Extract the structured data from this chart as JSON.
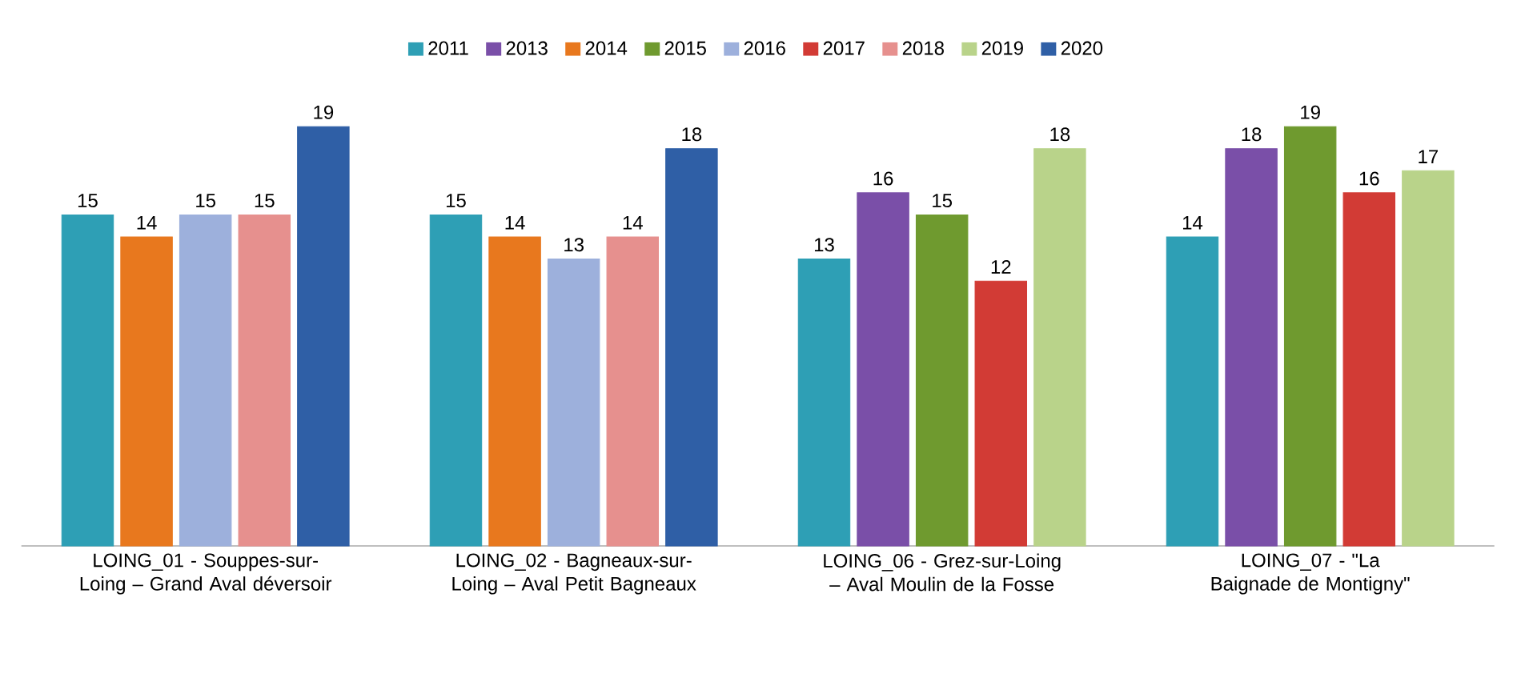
{
  "chart_data": {
    "type": "bar",
    "legend": "top",
    "data_labels": true,
    "categories": [
      "LOING_01 - Souppes-sur-Loing – Grand Aval déversoir",
      "LOING_02 - Bagneaux-sur-Loing – Aval Petit Bagneaux",
      "LOING_06 - Grez-sur-Loing – Aval Moulin de la Fosse",
      "LOING_07 - \"La Baignade de Montigny\""
    ],
    "series": [
      {
        "name": "2011",
        "color": "#2e9fb5",
        "values": [
          15,
          15,
          13,
          14
        ]
      },
      {
        "name": "2013",
        "color": "#7a4fa8",
        "values": [
          null,
          null,
          16,
          18
        ]
      },
      {
        "name": "2014",
        "color": "#e8781e",
        "values": [
          14,
          14,
          null,
          null
        ]
      },
      {
        "name": "2015",
        "color": "#6f9a2f",
        "values": [
          null,
          null,
          15,
          19
        ]
      },
      {
        "name": "2016",
        "color": "#9db0dc",
        "values": [
          15,
          13,
          null,
          null
        ]
      },
      {
        "name": "2017",
        "color": "#d23b35",
        "values": [
          null,
          null,
          12,
          16
        ]
      },
      {
        "name": "2018",
        "color": "#e6908e",
        "values": [
          15,
          14,
          null,
          null
        ]
      },
      {
        "name": "2019",
        "color": "#b9d38a",
        "values": [
          null,
          null,
          18,
          17
        ]
      },
      {
        "name": "2020",
        "color": "#2f5fa6",
        "values": [
          19,
          18,
          null,
          null
        ]
      }
    ]
  }
}
